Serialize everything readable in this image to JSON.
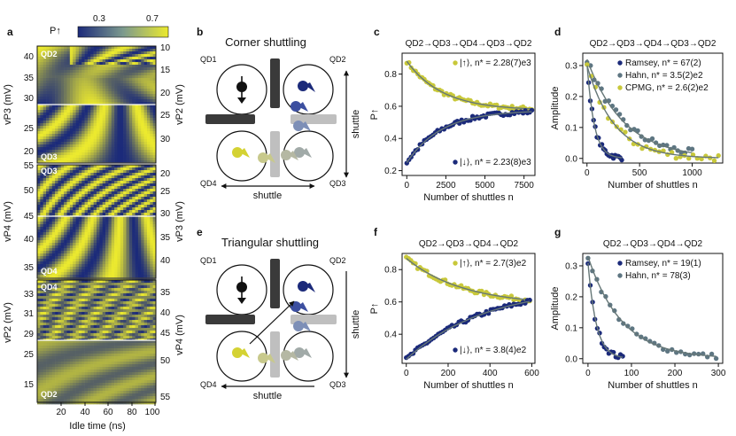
{
  "panel_letters": [
    "a",
    "b",
    "c",
    "d",
    "e",
    "f",
    "g"
  ],
  "colors": {
    "dark_blue": "#1b2a7a",
    "mid_blue": "#3c4fa0",
    "yellow": "#d4d233",
    "olive": "#a7b545",
    "grey_blue": "#5e7682",
    "grey": "#bfbfbf",
    "dark_grey": "#3a3a3a",
    "fit_line": "#667777"
  },
  "panel_a": {
    "colorbar_label": "P↑",
    "colorbar_ticks": [
      "0.3",
      "0.7"
    ],
    "xlabel": "Idle time (ns)",
    "x_ticks": [
      "20",
      "40",
      "60",
      "80",
      "100"
    ],
    "sections": [
      {
        "left_label": "vP3 (mV)",
        "left_ticks": [
          "40",
          "35",
          "30",
          "25",
          "20"
        ],
        "right_label": "vP2 (mV)",
        "right_ticks": [
          "10",
          "15",
          "20",
          "25",
          "30"
        ],
        "qd_labels": [
          "QD2",
          "QD3"
        ]
      },
      {
        "left_label": "vP4 (mV)",
        "left_ticks": [
          "55",
          "50",
          "45",
          "40",
          "35"
        ],
        "right_label": "vP3 (mV)",
        "right_ticks": [
          "20",
          "25",
          "30",
          "35",
          "40"
        ],
        "qd_labels": [
          "QD3",
          "QD4"
        ]
      },
      {
        "left_label": "vP2 (mV)",
        "left_ticks": [
          "33",
          "31",
          "29",
          "25",
          "15"
        ],
        "right_label": "vP4 (mV)",
        "right_ticks": [
          "35",
          "40",
          "45",
          "50",
          "55"
        ],
        "qd_labels": [
          "QD4",
          "QD2"
        ]
      }
    ]
  },
  "panel_b": {
    "title": "Corner shuttling",
    "qd_labels": [
      "QD1",
      "QD2",
      "QD3",
      "QD4"
    ],
    "shuttle_labels": [
      "shuttle",
      "shuttle"
    ]
  },
  "panel_e": {
    "title": "Triangular shuttling",
    "qd_labels": [
      "QD1",
      "QD2",
      "QD3",
      "QD4"
    ],
    "shuttle_labels": [
      "shuttle",
      "shuttle"
    ]
  },
  "chart_data": [
    {
      "panel": "c",
      "type": "scatter",
      "title": "QD2→QD3→QD4→QD3→QD2",
      "xlabel": "Number of shuttles n",
      "ylabel": "P↑",
      "xlim": [
        -300,
        8200
      ],
      "ylim": [
        0.17,
        0.93
      ],
      "x_ticks": [
        0,
        2500,
        5000,
        7500
      ],
      "y_ticks": [
        0.2,
        0.4,
        0.6,
        0.8
      ],
      "series": [
        {
          "name": "|↑⟩, n* = 2.28(7)e3",
          "color": "#c8c83a",
          "fit": {
            "a": 0.575,
            "b": 0.305,
            "tau": 2280
          },
          "xmax": 8000,
          "n": 58,
          "noise": 0.012
        },
        {
          "name": "|↓⟩, n* = 2.23(8)e3",
          "color": "#1b2a7a",
          "fit": {
            "a": 0.575,
            "b": -0.325,
            "tau": 2230
          },
          "xmax": 8000,
          "n": 58,
          "noise": 0.012
        }
      ]
    },
    {
      "panel": "d",
      "type": "scatter",
      "title": "QD2→QD3→QD4→QD3→QD2",
      "xlabel": "Number of shuttles n",
      "ylabel": "Amplitude",
      "xlim": [
        -40,
        1290
      ],
      "ylim": [
        -0.015,
        0.34
      ],
      "x_ticks": [
        0,
        500,
        1000
      ],
      "y_ticks": [
        0.0,
        0.1,
        0.2,
        0.3
      ],
      "series": [
        {
          "name": "Ramsey, n* = 67(2)",
          "color": "#1b2a7a",
          "fit": {
            "a": 0.0,
            "b": 0.31,
            "tau": 67
          },
          "xmax": 330,
          "n": 22,
          "noise": 0.008
        },
        {
          "name": "Hahn, n* = 3.5(2)e2",
          "color": "#5e7682",
          "fit": {
            "a": 0.0,
            "b": 0.32,
            "tau": 350
          },
          "xmax": 1000,
          "n": 30,
          "noise": 0.012
        },
        {
          "name": "CPMG, n* = 2.6(2)e2",
          "color": "#c8c83a",
          "fit": {
            "a": 0.0,
            "b": 0.3,
            "tau": 260
          },
          "xmax": 1250,
          "n": 32,
          "noise": 0.012
        }
      ]
    },
    {
      "panel": "f",
      "type": "scatter",
      "title": "QD2→QD3→QD4→QD2",
      "xlabel": "Number of shuttles n",
      "ylabel": "P↑",
      "xlim": [
        -20,
        615
      ],
      "ylim": [
        0.22,
        0.9
      ],
      "x_ticks": [
        0,
        200,
        400,
        600
      ],
      "y_ticks": [
        0.4,
        0.6,
        0.8
      ],
      "series": [
        {
          "name": "|↑⟩, n* = 2.7(3)e2",
          "color": "#c8c83a",
          "fit": {
            "a": 0.58,
            "b": 0.29,
            "tau": 270
          },
          "xmax": 590,
          "n": 55,
          "noise": 0.012
        },
        {
          "name": "|↓⟩, n* = 3.8(4)e2",
          "color": "#1b2a7a",
          "fit": {
            "a": 0.7,
            "b": -0.455,
            "tau": 380
          },
          "xmax": 590,
          "n": 55,
          "noise": 0.012
        }
      ]
    },
    {
      "panel": "g",
      "type": "scatter",
      "title": "QD2→QD3→QD4→QD2",
      "xlabel": "Number of shuttles n",
      "ylabel": "Amplitude",
      "xlim": [
        -12,
        310
      ],
      "ylim": [
        -0.015,
        0.34
      ],
      "x_ticks": [
        0,
        100,
        200,
        300
      ],
      "y_ticks": [
        0.0,
        0.1,
        0.2,
        0.3
      ],
      "series": [
        {
          "name": "Ramsey, n* = 19(1)",
          "color": "#1b2a7a",
          "fit": {
            "a": 0.0,
            "b": 0.31,
            "tau": 19
          },
          "xmax": 80,
          "n": 16,
          "noise": 0.008
        },
        {
          "name": "Hahn, n* = 78(3)",
          "color": "#5e7682",
          "fit": {
            "a": 0.0,
            "b": 0.33,
            "tau": 78
          },
          "xmax": 295,
          "n": 30,
          "noise": 0.008
        }
      ]
    }
  ]
}
